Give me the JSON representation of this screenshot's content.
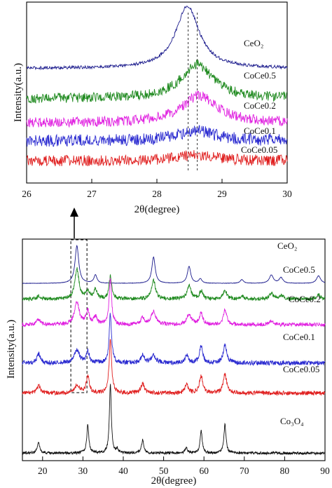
{
  "chart_data": [
    {
      "type": "line",
      "xlabel": "2θ(degree)",
      "ylabel": "Intensity(a.u.)",
      "xlim": [
        26,
        30
      ],
      "xticks": [
        26,
        27,
        28,
        29,
        30
      ],
      "grid": false,
      "reference_lines": [
        28.48,
        28.62
      ],
      "series": [
        {
          "name": "CeO₂",
          "color": "#1a1a8c",
          "baseline": 0.84,
          "peaks": [
            [
              28.47,
              0.62,
              0.22
            ]
          ],
          "noise": 0.015
        },
        {
          "name": "CoCe0.5",
          "color": "#1f8a1f",
          "baseline": 0.54,
          "peaks": [
            [
              28.62,
              0.34,
              0.3
            ]
          ],
          "noise": 0.05
        },
        {
          "name": "CoCe0.2",
          "color": "#e020e0",
          "baseline": 0.3,
          "peaks": [
            [
              28.65,
              0.27,
              0.32
            ]
          ],
          "noise": 0.05
        },
        {
          "name": "CoCe0.1",
          "color": "#2a2ad0",
          "baseline": 0.12,
          "peaks": [
            [
              28.6,
              0.1,
              0.35
            ]
          ],
          "noise": 0.06
        },
        {
          "name": "CoCe0.05",
          "color": "#e02020",
          "baseline": -0.08,
          "peaks": [
            [
              28.6,
              0.06,
              0.35
            ]
          ],
          "noise": 0.055
        }
      ]
    },
    {
      "type": "line",
      "xlabel": "2θ(degree)",
      "ylabel": "Intensity(a.u.)",
      "xlim": [
        15,
        90
      ],
      "xticks": [
        20,
        30,
        40,
        50,
        60,
        70,
        80,
        90
      ],
      "grid": false,
      "highlight_box": {
        "x": [
          27,
          31
        ]
      },
      "series": [
        {
          "name": "CeO₂",
          "color": "#1a1a8c",
          "baseline": 0.92,
          "peaks": [
            [
              28.5,
              1.0,
              0.55
            ],
            [
              33.1,
              0.22,
              0.45
            ],
            [
              47.5,
              0.7,
              0.5
            ],
            [
              56.3,
              0.45,
              0.5
            ],
            [
              59.1,
              0.12,
              0.45
            ],
            [
              69.4,
              0.1,
              0.5
            ],
            [
              76.7,
              0.22,
              0.6
            ],
            [
              79.1,
              0.15,
              0.55
            ],
            [
              88.4,
              0.2,
              0.6
            ]
          ],
          "noise": 0.005
        },
        {
          "name": "CoCe0.5",
          "color": "#1f8a1f",
          "baseline": 0.5,
          "peaks": [
            [
              19.0,
              0.08,
              0.5
            ],
            [
              28.5,
              0.8,
              0.6
            ],
            [
              31.2,
              0.2,
              0.5
            ],
            [
              33.1,
              0.25,
              0.5
            ],
            [
              36.8,
              0.6,
              0.4
            ],
            [
              47.5,
              0.5,
              0.6
            ],
            [
              56.3,
              0.35,
              0.6
            ],
            [
              59.3,
              0.22,
              0.5
            ],
            [
              65.2,
              0.25,
              0.5
            ],
            [
              69.4,
              0.08,
              0.6
            ],
            [
              76.7,
              0.15,
              0.6
            ],
            [
              79.1,
              0.1,
              0.6
            ],
            [
              88.4,
              0.12,
              0.6
            ]
          ],
          "noise": 0.05
        },
        {
          "name": "CoCe0.2",
          "color": "#e020e0",
          "baseline": -0.18,
          "peaks": [
            [
              19.0,
              0.15,
              0.5
            ],
            [
              28.5,
              0.6,
              0.7
            ],
            [
              31.2,
              0.35,
              0.5
            ],
            [
              33.1,
              0.2,
              0.5
            ],
            [
              36.8,
              1.25,
              0.35
            ],
            [
              44.8,
              0.18,
              0.5
            ],
            [
              47.5,
              0.35,
              0.7
            ],
            [
              56.3,
              0.28,
              0.7
            ],
            [
              59.3,
              0.3,
              0.5
            ],
            [
              65.2,
              0.4,
              0.5
            ],
            [
              76.7,
              0.1,
              0.7
            ]
          ],
          "noise": 0.05
        },
        {
          "name": "CoCe0.1",
          "color": "#2a2ad0",
          "baseline": -1.2,
          "peaks": [
            [
              19.0,
              0.25,
              0.5
            ],
            [
              28.5,
              0.35,
              0.7
            ],
            [
              31.2,
              0.3,
              0.5
            ],
            [
              36.8,
              1.3,
              0.35
            ],
            [
              44.8,
              0.2,
              0.5
            ],
            [
              47.5,
              0.2,
              0.7
            ],
            [
              55.7,
              0.2,
              0.5
            ],
            [
              59.3,
              0.45,
              0.5
            ],
            [
              65.2,
              0.5,
              0.5
            ]
          ],
          "noise": 0.06
        },
        {
          "name": "CoCe0.05",
          "color": "#e02020",
          "baseline": -2.0,
          "peaks": [
            [
              19.0,
              0.2,
              0.5
            ],
            [
              28.5,
              0.2,
              0.7
            ],
            [
              31.2,
              0.45,
              0.45
            ],
            [
              36.8,
              1.45,
              0.35
            ],
            [
              44.8,
              0.25,
              0.5
            ],
            [
              55.7,
              0.22,
              0.5
            ],
            [
              59.3,
              0.45,
              0.5
            ],
            [
              65.2,
              0.5,
              0.5
            ]
          ],
          "noise": 0.055
        },
        {
          "name": "Co₃O₄",
          "color": "#111111",
          "baseline": -3.6,
          "peaks": [
            [
              19.0,
              0.3,
              0.35
            ],
            [
              31.2,
              0.75,
              0.3
            ],
            [
              36.8,
              1.85,
              0.28
            ],
            [
              38.5,
              0.1,
              0.3
            ],
            [
              44.8,
              0.35,
              0.35
            ],
            [
              55.6,
              0.15,
              0.35
            ],
            [
              59.3,
              0.6,
              0.32
            ],
            [
              65.2,
              0.75,
              0.32
            ]
          ],
          "noise": 0.035
        }
      ]
    }
  ]
}
